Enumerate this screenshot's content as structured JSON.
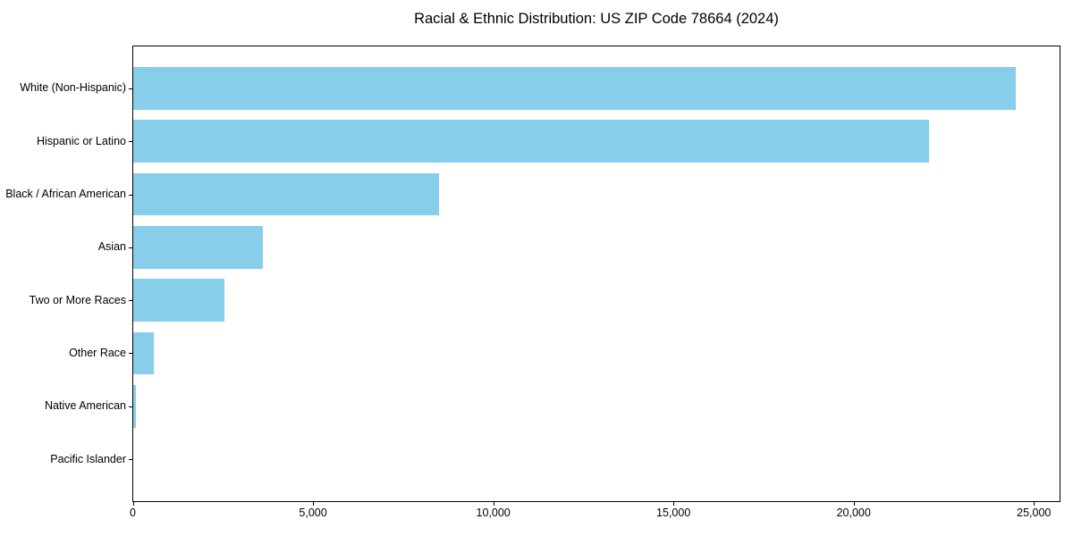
{
  "chart_data": {
    "type": "bar",
    "orientation": "horizontal",
    "title": "Racial & Ethnic Distribution: US ZIP Code 78664 (2024)",
    "categories": [
      "White (Non-Hispanic)",
      "Hispanic or Latino",
      "Black / African American",
      "Asian",
      "Two or More Races",
      "Other Race",
      "Native American",
      "Pacific Islander"
    ],
    "values": [
      24500,
      22100,
      8500,
      3600,
      2530,
      560,
      75,
      0
    ],
    "xlabel": "",
    "ylabel": "",
    "xlim": [
      0,
      25725
    ],
    "x_tick_values": [
      0,
      5000,
      10000,
      15000,
      20000,
      25000
    ],
    "x_tick_labels": [
      "0",
      "5,000",
      "10,000",
      "15,000",
      "20,000",
      "25,000"
    ],
    "bar_color": "#87CEEB",
    "text_color": "#000000",
    "grid": false,
    "legend": null
  }
}
